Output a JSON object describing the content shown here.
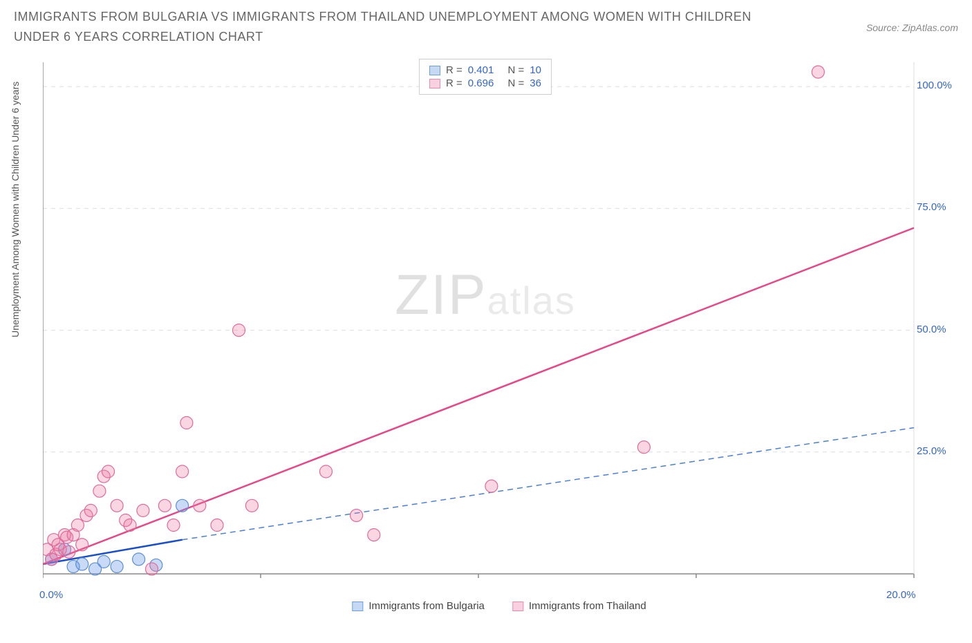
{
  "title": "IMMIGRANTS FROM BULGARIA VS IMMIGRANTS FROM THAILAND UNEMPLOYMENT AMONG WOMEN WITH CHILDREN UNDER 6 YEARS CORRELATION CHART",
  "source": "Source: ZipAtlas.com",
  "watermark_zip": "ZIP",
  "watermark_atlas": "atlas",
  "y_axis_label": "Unemployment Among Women with Children Under 6 years",
  "chart": {
    "type": "scatter",
    "background_color": "#ffffff",
    "grid_color": "#dddddd",
    "axis_color": "#888888",
    "xlim": [
      0,
      20
    ],
    "ylim": [
      0,
      105
    ],
    "x_ticks": [
      0,
      5,
      10,
      15,
      20
    ],
    "x_tick_labels": [
      "0.0%",
      "",
      "",
      "",
      "20.0%"
    ],
    "y_ticks": [
      25,
      50,
      75,
      100
    ],
    "y_tick_labels": [
      "25.0%",
      "50.0%",
      "75.0%",
      "100.0%"
    ],
    "series": [
      {
        "name": "Immigrants from Bulgaria",
        "color_fill": "rgba(100,150,230,0.35)",
        "color_stroke": "#5b8fd6",
        "swatch_fill": "#c6d9f3",
        "swatch_border": "#6a9de8",
        "R": "0.401",
        "N": "10",
        "marker_radius": 9,
        "trend": {
          "x1": 0,
          "y1": 2,
          "x2": 3.2,
          "y2": 7,
          "dashed": false,
          "color": "#1a4fc9",
          "width": 2.5
        },
        "trend_ext": {
          "x1": 3.2,
          "y1": 7,
          "x2": 20,
          "y2": 30,
          "dashed": true,
          "color": "#4a7fd6",
          "width": 1.5
        },
        "points": [
          {
            "x": 0.2,
            "y": 3
          },
          {
            "x": 0.5,
            "y": 5
          },
          {
            "x": 0.7,
            "y": 1.5
          },
          {
            "x": 0.9,
            "y": 2
          },
          {
            "x": 1.2,
            "y": 1
          },
          {
            "x": 1.4,
            "y": 2.5
          },
          {
            "x": 1.7,
            "y": 1.5
          },
          {
            "x": 2.2,
            "y": 3
          },
          {
            "x": 2.6,
            "y": 1.8
          },
          {
            "x": 3.2,
            "y": 14
          }
        ]
      },
      {
        "name": "Immigrants from Thailand",
        "color_fill": "rgba(235,120,160,0.30)",
        "color_stroke": "#e06a9a",
        "swatch_fill": "#f8d1e0",
        "swatch_border": "#e88ab0",
        "R": "0.696",
        "N": "36",
        "marker_radius": 9,
        "trend": {
          "x1": 0,
          "y1": 2,
          "x2": 20,
          "y2": 71,
          "dashed": false,
          "color": "#e54888",
          "width": 2.5
        },
        "points": [
          {
            "x": 0.1,
            "y": 5
          },
          {
            "x": 0.2,
            "y": 3
          },
          {
            "x": 0.25,
            "y": 7
          },
          {
            "x": 0.3,
            "y": 4
          },
          {
            "x": 0.35,
            "y": 6
          },
          {
            "x": 0.4,
            "y": 5
          },
          {
            "x": 0.5,
            "y": 8
          },
          {
            "x": 0.55,
            "y": 7.5
          },
          {
            "x": 0.6,
            "y": 4.5
          },
          {
            "x": 0.7,
            "y": 8
          },
          {
            "x": 0.8,
            "y": 10
          },
          {
            "x": 0.9,
            "y": 6
          },
          {
            "x": 1.0,
            "y": 12
          },
          {
            "x": 1.1,
            "y": 13
          },
          {
            "x": 1.3,
            "y": 17
          },
          {
            "x": 1.4,
            "y": 20
          },
          {
            "x": 1.5,
            "y": 21
          },
          {
            "x": 1.7,
            "y": 14
          },
          {
            "x": 1.9,
            "y": 11
          },
          {
            "x": 2.0,
            "y": 10
          },
          {
            "x": 2.3,
            "y": 13
          },
          {
            "x": 2.5,
            "y": 1
          },
          {
            "x": 2.8,
            "y": 14
          },
          {
            "x": 3.0,
            "y": 10
          },
          {
            "x": 3.2,
            "y": 21
          },
          {
            "x": 3.3,
            "y": 31
          },
          {
            "x": 3.6,
            "y": 14
          },
          {
            "x": 4.0,
            "y": 10
          },
          {
            "x": 4.5,
            "y": 50
          },
          {
            "x": 4.8,
            "y": 14
          },
          {
            "x": 6.5,
            "y": 21
          },
          {
            "x": 7.2,
            "y": 12
          },
          {
            "x": 7.6,
            "y": 8
          },
          {
            "x": 10.3,
            "y": 18
          },
          {
            "x": 13.8,
            "y": 26
          },
          {
            "x": 17.8,
            "y": 103
          }
        ]
      }
    ]
  },
  "legend_bottom": [
    {
      "label": "Immigrants from Bulgaria",
      "fill": "#c6d9f3",
      "border": "#6a9de8"
    },
    {
      "label": "Immigrants from Thailand",
      "fill": "#f8d1e0",
      "border": "#e88ab0"
    }
  ]
}
